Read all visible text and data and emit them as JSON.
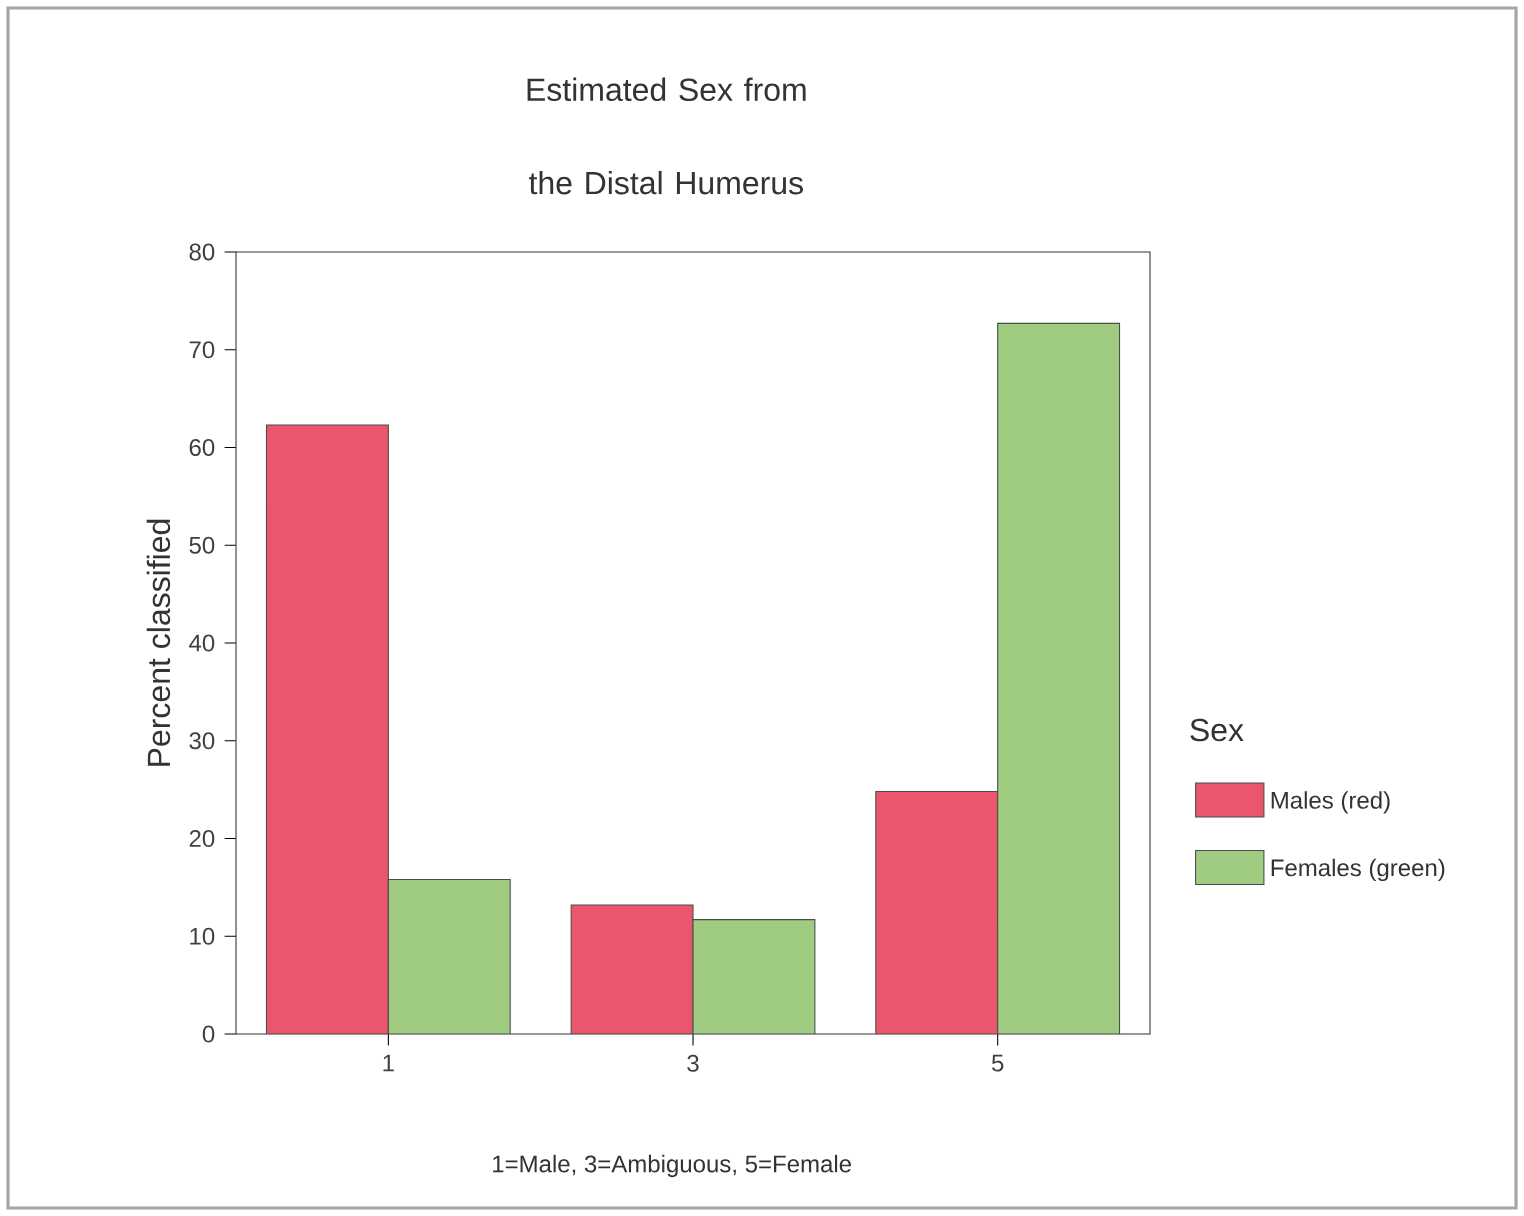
{
  "chart_data": {
    "type": "bar",
    "title": "Estimated Sex from the Distal Humerus",
    "ylabel": "Percent classified",
    "legend_title": "Sex",
    "annotations": [
      "1=Male, 3=Ambiguous, 5=Female"
    ],
    "categories": [
      "1",
      "3",
      "5"
    ],
    "series": [
      {
        "name": "Males (red)",
        "color": "#e9566d",
        "values": [
          62.3,
          13.2,
          24.8
        ]
      },
      {
        "name": "Females (green)",
        "color": "#9fcc80",
        "values": [
          15.8,
          11.7,
          72.7
        ]
      }
    ],
    "ylim": [
      0,
      80
    ],
    "yticks": [
      0,
      10,
      20,
      30,
      40,
      50,
      60,
      70,
      80
    ],
    "legend": "right",
    "grid": false
  }
}
